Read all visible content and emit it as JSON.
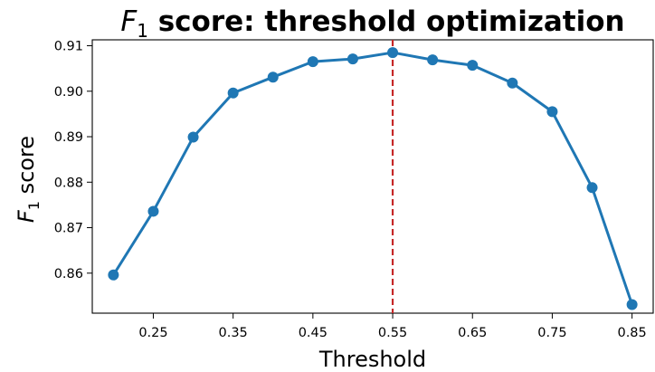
{
  "chart_data": {
    "type": "line",
    "title": {
      "symbol": "F",
      "subscript": "1",
      "text": " score: threshold optimization"
    },
    "xlabel": "Threshold",
    "ylabel": {
      "symbol": "F",
      "subscript": "1",
      "text": " score"
    },
    "x": [
      0.2,
      0.25,
      0.3,
      0.35,
      0.4,
      0.45,
      0.5,
      0.55,
      0.6,
      0.65,
      0.7,
      0.75,
      0.8,
      0.85
    ],
    "series": [
      {
        "values": [
          0.8596,
          0.8736,
          0.8899,
          0.8996,
          0.9031,
          0.9065,
          0.9071,
          0.9085,
          0.9069,
          0.9057,
          0.9018,
          0.8955,
          0.8788,
          0.8531
        ],
        "color": "#1f77b4",
        "marker": "circle"
      }
    ],
    "xlim": [
      0.1735,
      0.8765
    ],
    "ylim": [
      0.8512,
      0.9113
    ],
    "xticks": [
      "0.25",
      "0.35",
      "0.45",
      "0.55",
      "0.65",
      "0.75",
      "0.85"
    ],
    "yticks": [
      "0.86",
      "0.87",
      "0.88",
      "0.89",
      "0.90",
      "0.91"
    ],
    "vline": {
      "x": 0.55,
      "color": "#c62828",
      "style": "dashed"
    },
    "grid": false
  }
}
